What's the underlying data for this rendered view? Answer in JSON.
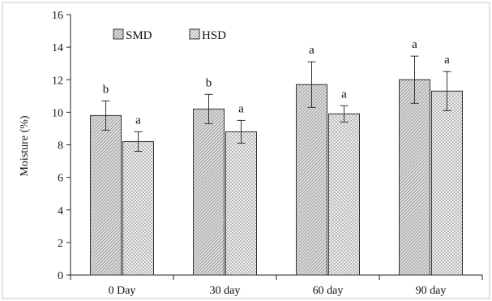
{
  "chart_data": {
    "type": "bar",
    "ylabel": "Moisture (%)",
    "xlabel": "",
    "ylim": [
      0,
      16
    ],
    "yticks": [
      0,
      2,
      4,
      6,
      8,
      10,
      12,
      14,
      16
    ],
    "grid": false,
    "legend_position": "top-left",
    "categories": [
      "0 Day",
      "30 day",
      "60 day",
      "90 day"
    ],
    "series": [
      {
        "name": "SMD",
        "pattern": "diagonal-lines",
        "color": "#d9d9d9",
        "values": [
          9.8,
          10.2,
          11.7,
          12.0
        ],
        "errors": [
          0.9,
          0.9,
          1.4,
          1.45
        ],
        "significance": [
          "b",
          "b",
          "a",
          "a"
        ]
      },
      {
        "name": "HSD",
        "pattern": "dots",
        "color": "#e6e6e6",
        "values": [
          8.2,
          8.8,
          9.9,
          11.3
        ],
        "errors": [
          0.6,
          0.7,
          0.5,
          1.2
        ],
        "significance": [
          "a",
          "a",
          "a",
          "a"
        ]
      }
    ]
  }
}
